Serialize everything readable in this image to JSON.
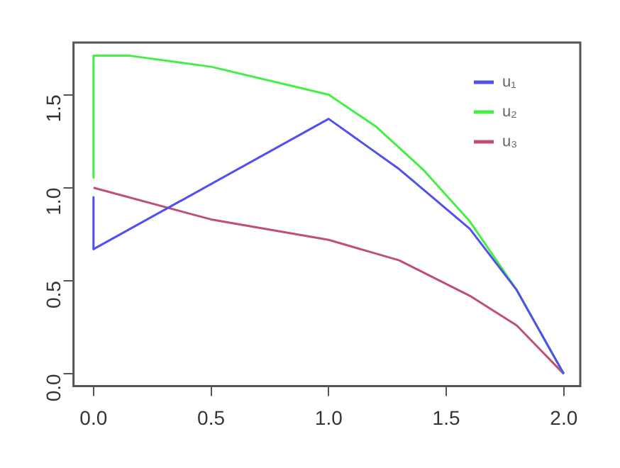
{
  "chart_data": {
    "type": "line",
    "xlim": [
      -0.085,
      2.07
    ],
    "ylim": [
      -0.065,
      1.78
    ],
    "xticks": [
      {
        "value": 0,
        "label": "0.0"
      },
      0.5,
      {
        "value": 1,
        "label": "1.0"
      },
      1.5,
      {
        "value": 2,
        "label": "2.0"
      }
    ],
    "yticks": [
      {
        "value": 0,
        "label": "0.0"
      },
      0.5,
      {
        "value": 1,
        "label": "1.0"
      },
      1.5
    ],
    "grid": false,
    "legend": "top right",
    "marker": "none",
    "line_style": "solid",
    "series": [
      {
        "name": "u₁",
        "color": "#5050ee",
        "x": [
          0,
          0,
          1,
          1.3,
          1.6,
          1.8,
          2
        ],
        "values": [
          0.95,
          0.67,
          1.37,
          1.1,
          0.78,
          0.45,
          0
        ]
      },
      {
        "name": "u₂",
        "color": "#44ee44",
        "x": [
          0,
          0,
          0.15,
          0.5,
          1,
          1.2,
          1.4,
          1.6,
          1.8,
          2
        ],
        "values": [
          1.05,
          1.71,
          1.71,
          1.65,
          1.5,
          1.33,
          1.1,
          0.82,
          0.45,
          0
        ]
      },
      {
        "name": "u₃",
        "color": "#c05070",
        "x": [
          0,
          0.5,
          1,
          1.3,
          1.6,
          1.8,
          2
        ],
        "values": [
          1.0,
          0.83,
          0.72,
          0.61,
          0.42,
          0.26,
          0
        ]
      }
    ]
  }
}
